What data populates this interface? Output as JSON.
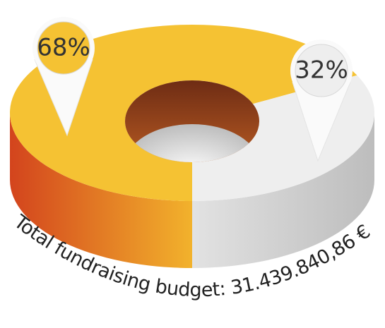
{
  "chart_data": {
    "type": "donut",
    "values": [
      68,
      32
    ],
    "value_labels": [
      "68%",
      "32%"
    ],
    "colors": [
      "#f5c233",
      "#eeeeee"
    ],
    "caption": "Total fundraising budget: 31.439.840,86 €"
  }
}
